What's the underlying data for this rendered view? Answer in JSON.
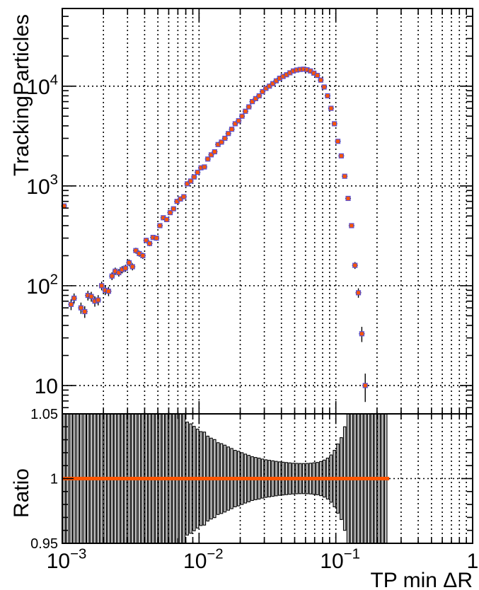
{
  "chart_data": [
    {
      "panel": "main",
      "type": "scatter",
      "ylabel": "TrackingParticles",
      "xscale": "log",
      "yscale": "log",
      "xlim": [
        0.001,
        1
      ],
      "ylim": [
        5.2,
        60000
      ],
      "grid": true,
      "y_ticks": [
        {
          "value": 10,
          "base": "10",
          "exp": ""
        },
        {
          "value": 100,
          "base": "10",
          "exp": "2"
        },
        {
          "value": 1000,
          "base": "10",
          "exp": "3"
        },
        {
          "value": 10000,
          "base": "10",
          "exp": "4"
        }
      ],
      "series": [
        {
          "color": "#ff5500",
          "edge_color": "#5a4fd1",
          "x": [
            0.00103,
            0.00109,
            0.00116,
            0.00122,
            0.0013,
            0.00137,
            0.00146,
            0.00154,
            0.00163,
            0.00173,
            0.00183,
            0.00194,
            0.00206,
            0.00218,
            0.00231,
            0.00244,
            0.00259,
            0.00274,
            0.0029,
            0.00308,
            0.00326,
            0.00345,
            0.00366,
            0.00388,
            0.00411,
            0.00435,
            0.00461,
            0.00488,
            0.00517,
            0.00548,
            0.0058,
            0.00615,
            0.00651,
            0.0069,
            0.00731,
            0.00774,
            0.0082,
            0.00869,
            0.0092,
            0.00975,
            0.01033,
            0.01094,
            0.01159,
            0.01227,
            0.013,
            0.01377,
            0.01459,
            0.01545,
            0.01637,
            0.01734,
            0.01837,
            0.01946,
            0.02061,
            0.02183,
            0.02313,
            0.0245,
            0.02595,
            0.02749,
            0.02912,
            0.03085,
            0.03268,
            0.03462,
            0.03667,
            0.03884,
            0.04115,
            0.04359,
            0.04617,
            0.04891,
            0.05181,
            0.05488,
            0.05814,
            0.06158,
            0.06524,
            0.06911,
            0.07321,
            0.07755,
            0.08215,
            0.08702,
            0.09218,
            0.09765,
            0.10345,
            0.10958,
            0.11608,
            0.12297,
            0.13026,
            0.13799,
            0.14617,
            0.15484,
            0.16403,
            0.17376,
            0.18406,
            0.19498,
            0.20655,
            0.2188,
            0.23178,
            0.24553
          ],
          "y": [
            630,
            0,
            65,
            75,
            0,
            60,
            55,
            80,
            78,
            70,
            72,
            100,
            90,
            88,
            125,
            140,
            135,
            145,
            150,
            170,
            155,
            225,
            210,
            200,
            285,
            265,
            305,
            300,
            400,
            480,
            460,
            540,
            590,
            700,
            740,
            780,
            1050,
            1120,
            1230,
            1370,
            1520,
            1550,
            1860,
            2050,
            2200,
            2600,
            2750,
            3000,
            3350,
            3700,
            4200,
            4500,
            5000,
            5600,
            6200,
            7000,
            7500,
            8000,
            8800,
            9500,
            10000,
            10600,
            11300,
            12000,
            12500,
            13000,
            13600,
            14200,
            14500,
            14700,
            14800,
            14600,
            14200,
            13500,
            12800,
            11500,
            9800,
            8000,
            6000,
            4200,
            2800,
            2000,
            1250,
            750,
            400,
            160,
            85,
            33,
            10,
            0,
            0,
            0,
            0,
            0,
            0,
            0
          ]
        }
      ]
    },
    {
      "panel": "ratio",
      "type": "scatter",
      "xlabel": "TP min ΔR",
      "ylabel": "Ratio",
      "xscale": "log",
      "xlim": [
        0.001,
        1
      ],
      "ylim": [
        0.95,
        1.05
      ],
      "grid": true,
      "x_ticks": [
        {
          "value": 0.001,
          "base": "10",
          "exp": "−3"
        },
        {
          "value": 0.01,
          "base": "10",
          "exp": "−2"
        },
        {
          "value": 0.1,
          "base": "10",
          "exp": "−1"
        },
        {
          "value": 1,
          "base": "1",
          "exp": ""
        }
      ],
      "y_ticks": [
        {
          "value": 0.95,
          "label": "0.95"
        },
        {
          "value": 1.0,
          "label": "1"
        },
        {
          "value": 1.05,
          "label": "1.05"
        }
      ],
      "ratio_value": 1.0,
      "band_color": "#c8c8c8",
      "line_color": "#ff5500",
      "x_end": 0.2455
    }
  ]
}
